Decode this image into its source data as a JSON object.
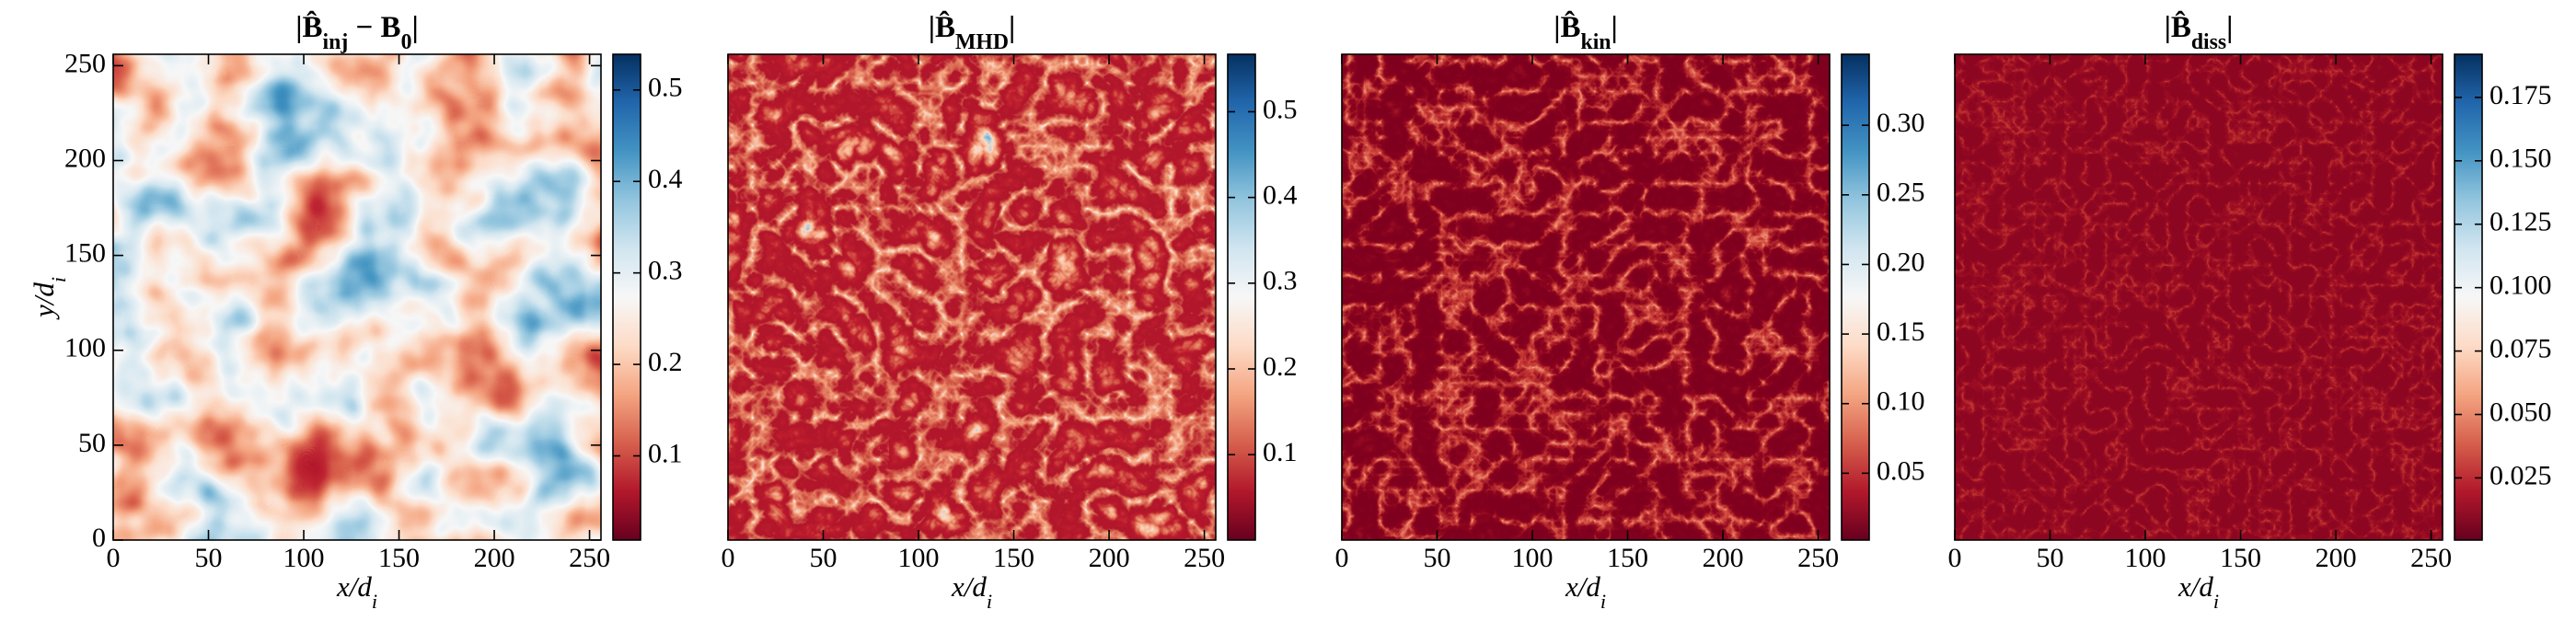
{
  "chart_data": [
    {
      "type": "heatmap",
      "title": [
        {
          "text": "|B̂"
        },
        {
          "text": "inj",
          "style": "sub"
        },
        {
          "text": " − B"
        },
        {
          "text": "0",
          "style": "sub"
        },
        {
          "text": "|"
        }
      ],
      "xlabel": [
        {
          "text": "x/d"
        },
        {
          "text": "i",
          "style": "sub"
        }
      ],
      "ylabel": [
        {
          "text": "y/d"
        },
        {
          "text": "i",
          "style": "sub"
        }
      ],
      "xlim": [
        0,
        256
      ],
      "xticks": [
        0,
        50,
        100,
        150,
        200,
        250
      ],
      "ylim": [
        0,
        256
      ],
      "yticks": [
        0,
        50,
        100,
        150,
        200,
        250
      ],
      "colormap": "RdBu",
      "clim": [
        0.008,
        0.539
      ],
      "cticks": [
        {
          "value": 0.1,
          "label": "0.1"
        },
        {
          "value": 0.2,
          "label": "0.2"
        },
        {
          "value": 0.3,
          "label": "0.3"
        },
        {
          "value": 0.4,
          "label": "0.4"
        },
        {
          "value": 0.5,
          "label": "0.5"
        }
      ]
    },
    {
      "type": "heatmap",
      "title": [
        {
          "text": "|B̂"
        },
        {
          "text": "MHD",
          "style": "sub"
        },
        {
          "text": "|"
        }
      ],
      "xlabel": [
        {
          "text": "x/d"
        },
        {
          "text": "i",
          "style": "sub"
        }
      ],
      "xlim": [
        0,
        256
      ],
      "xticks": [
        0,
        50,
        100,
        150,
        200,
        250
      ],
      "colormap": "RdBu",
      "clim": [
        0.0004,
        0.567
      ],
      "cticks": [
        0.1,
        0.2,
        0.3,
        0.4,
        0.5
      ]
    },
    {
      "type": "heatmap",
      "title": [
        {
          "text": "|B̂"
        },
        {
          "text": "kin",
          "style": "sub"
        },
        {
          "text": "|"
        }
      ],
      "xlabel": [
        {
          "text": "x/d"
        },
        {
          "text": "i",
          "style": "sub"
        }
      ],
      "xlim": [
        0,
        256
      ],
      "xticks": [
        0,
        50,
        100,
        150,
        200,
        250
      ],
      "colormap": "RdBu",
      "clim": [
        0.002,
        0.351
      ],
      "cticks": [
        0.05,
        {
          "value": 0.1,
          "label": "0.10"
        },
        0.15,
        {
          "value": 0.2,
          "label": "0.20"
        },
        0.25,
        {
          "value": 0.3,
          "label": "0.30"
        }
      ]
    },
    {
      "type": "heatmap",
      "title": [
        {
          "text": "|B̂"
        },
        {
          "text": "diss",
          "style": "sub"
        },
        {
          "text": "|"
        }
      ],
      "xlabel": [
        {
          "text": "x/d"
        },
        {
          "text": "i",
          "style": "sub"
        }
      ],
      "xlim": [
        0,
        256
      ],
      "xticks": [
        0,
        50,
        100,
        150,
        200,
        250
      ],
      "colormap": "RdBu",
      "clim": [
        0.0005,
        0.192
      ],
      "cticks": [
        0.025,
        {
          "value": 0.05,
          "label": "0.050"
        },
        0.075,
        {
          "value": 0.1,
          "label": "0.100"
        },
        0.125,
        {
          "value": 0.15,
          "label": "0.150"
        },
        0.175
      ]
    }
  ]
}
